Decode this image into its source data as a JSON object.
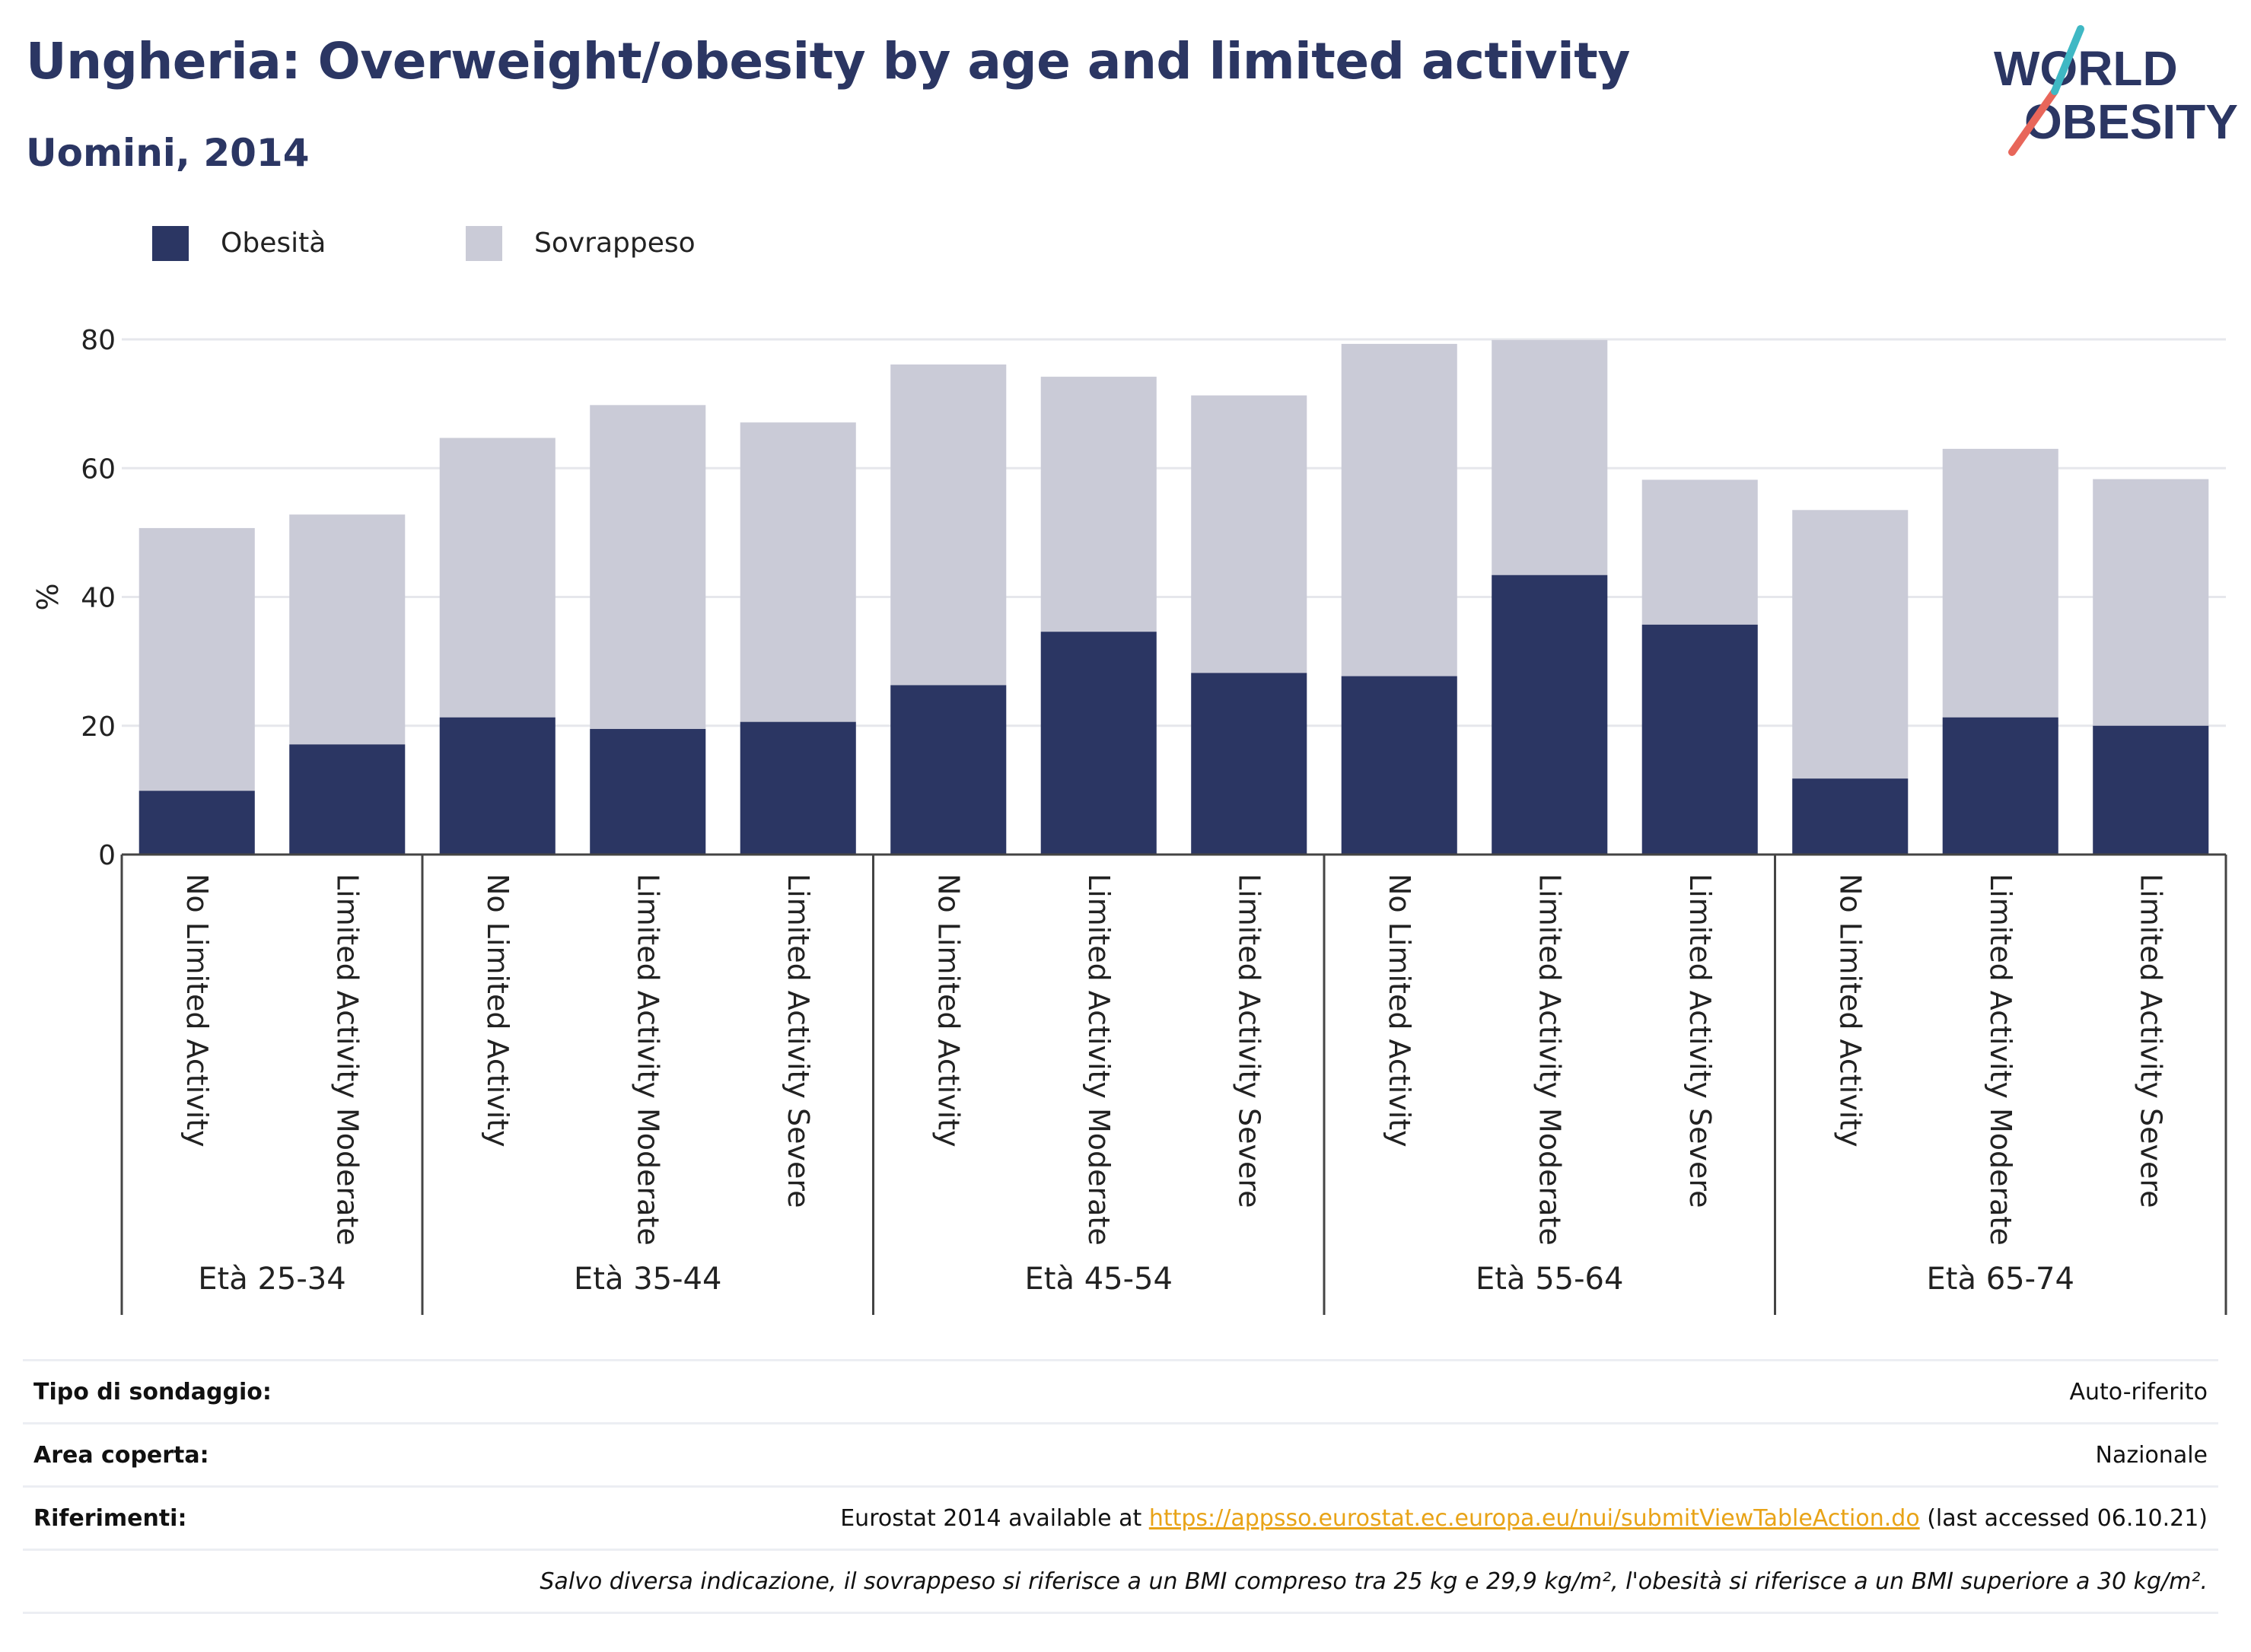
{
  "header": {
    "title": "Ungheria: Overweight/obesity by age and limited activity",
    "subtitle": "Uomini, 2014"
  },
  "logo": {
    "line1": "WORLD",
    "line2": "OBESITY"
  },
  "colors": {
    "obesity": "#2b3663",
    "overweight": "#cacbd7",
    "title": "#2b3663",
    "link": "#e8a317"
  },
  "chart_data": {
    "type": "bar",
    "stacked": true,
    "ylabel": "%",
    "ylim": [
      0,
      80
    ],
    "yticks": [
      0,
      20,
      40,
      60,
      80
    ],
    "grid": true,
    "legend_position": "top-left",
    "groups": [
      {
        "label": "Età 25-34",
        "categories": [
          "No Limited Activity",
          "Limited Activity Moderate"
        ]
      },
      {
        "label": "Età 35-44",
        "categories": [
          "No Limited Activity",
          "Limited Activity Moderate",
          "Limited Activity Severe"
        ]
      },
      {
        "label": "Età 45-54",
        "categories": [
          "No Limited Activity",
          "Limited Activity Moderate",
          "Limited Activity Severe"
        ]
      },
      {
        "label": "Età 55-64",
        "categories": [
          "No Limited Activity",
          "Limited Activity Moderate",
          "Limited Activity Severe"
        ]
      },
      {
        "label": "Età 65-74",
        "categories": [
          "No Limited Activity",
          "Limited Activity Moderate",
          "Limited Activity Severe"
        ]
      }
    ],
    "series": [
      {
        "name": "Obesità",
        "values": [
          9.9,
          17.1,
          21.3,
          19.5,
          20.6,
          26.3,
          34.6,
          28.2,
          27.7,
          43.4,
          35.7,
          11.8,
          21.3,
          20.0
        ]
      },
      {
        "name": "Sovrappeso",
        "values": [
          40.8,
          35.7,
          43.4,
          50.3,
          46.5,
          49.8,
          39.6,
          43.1,
          51.6,
          36.5,
          22.5,
          41.7,
          41.7,
          38.3
        ]
      }
    ]
  },
  "info": {
    "survey_type_label": "Tipo di sondaggio:",
    "survey_type_value": "Auto-riferito",
    "area_label": "Area coperta:",
    "area_value": "Nazionale",
    "references_label": "Riferimenti:",
    "references_prefix": "Eurostat 2014 available at ",
    "references_link": "https://appsso.eurostat.ec.europa.eu/nui/submitViewTableAction.do",
    "references_suffix": " (last accessed 06.10.21)",
    "note": "Salvo diversa indicazione, il sovrappeso si riferisce a un BMI compreso tra 25 kg e 29,9 kg/m², l'obesità si riferisce a un BMI superiore a 30 kg/m²."
  }
}
